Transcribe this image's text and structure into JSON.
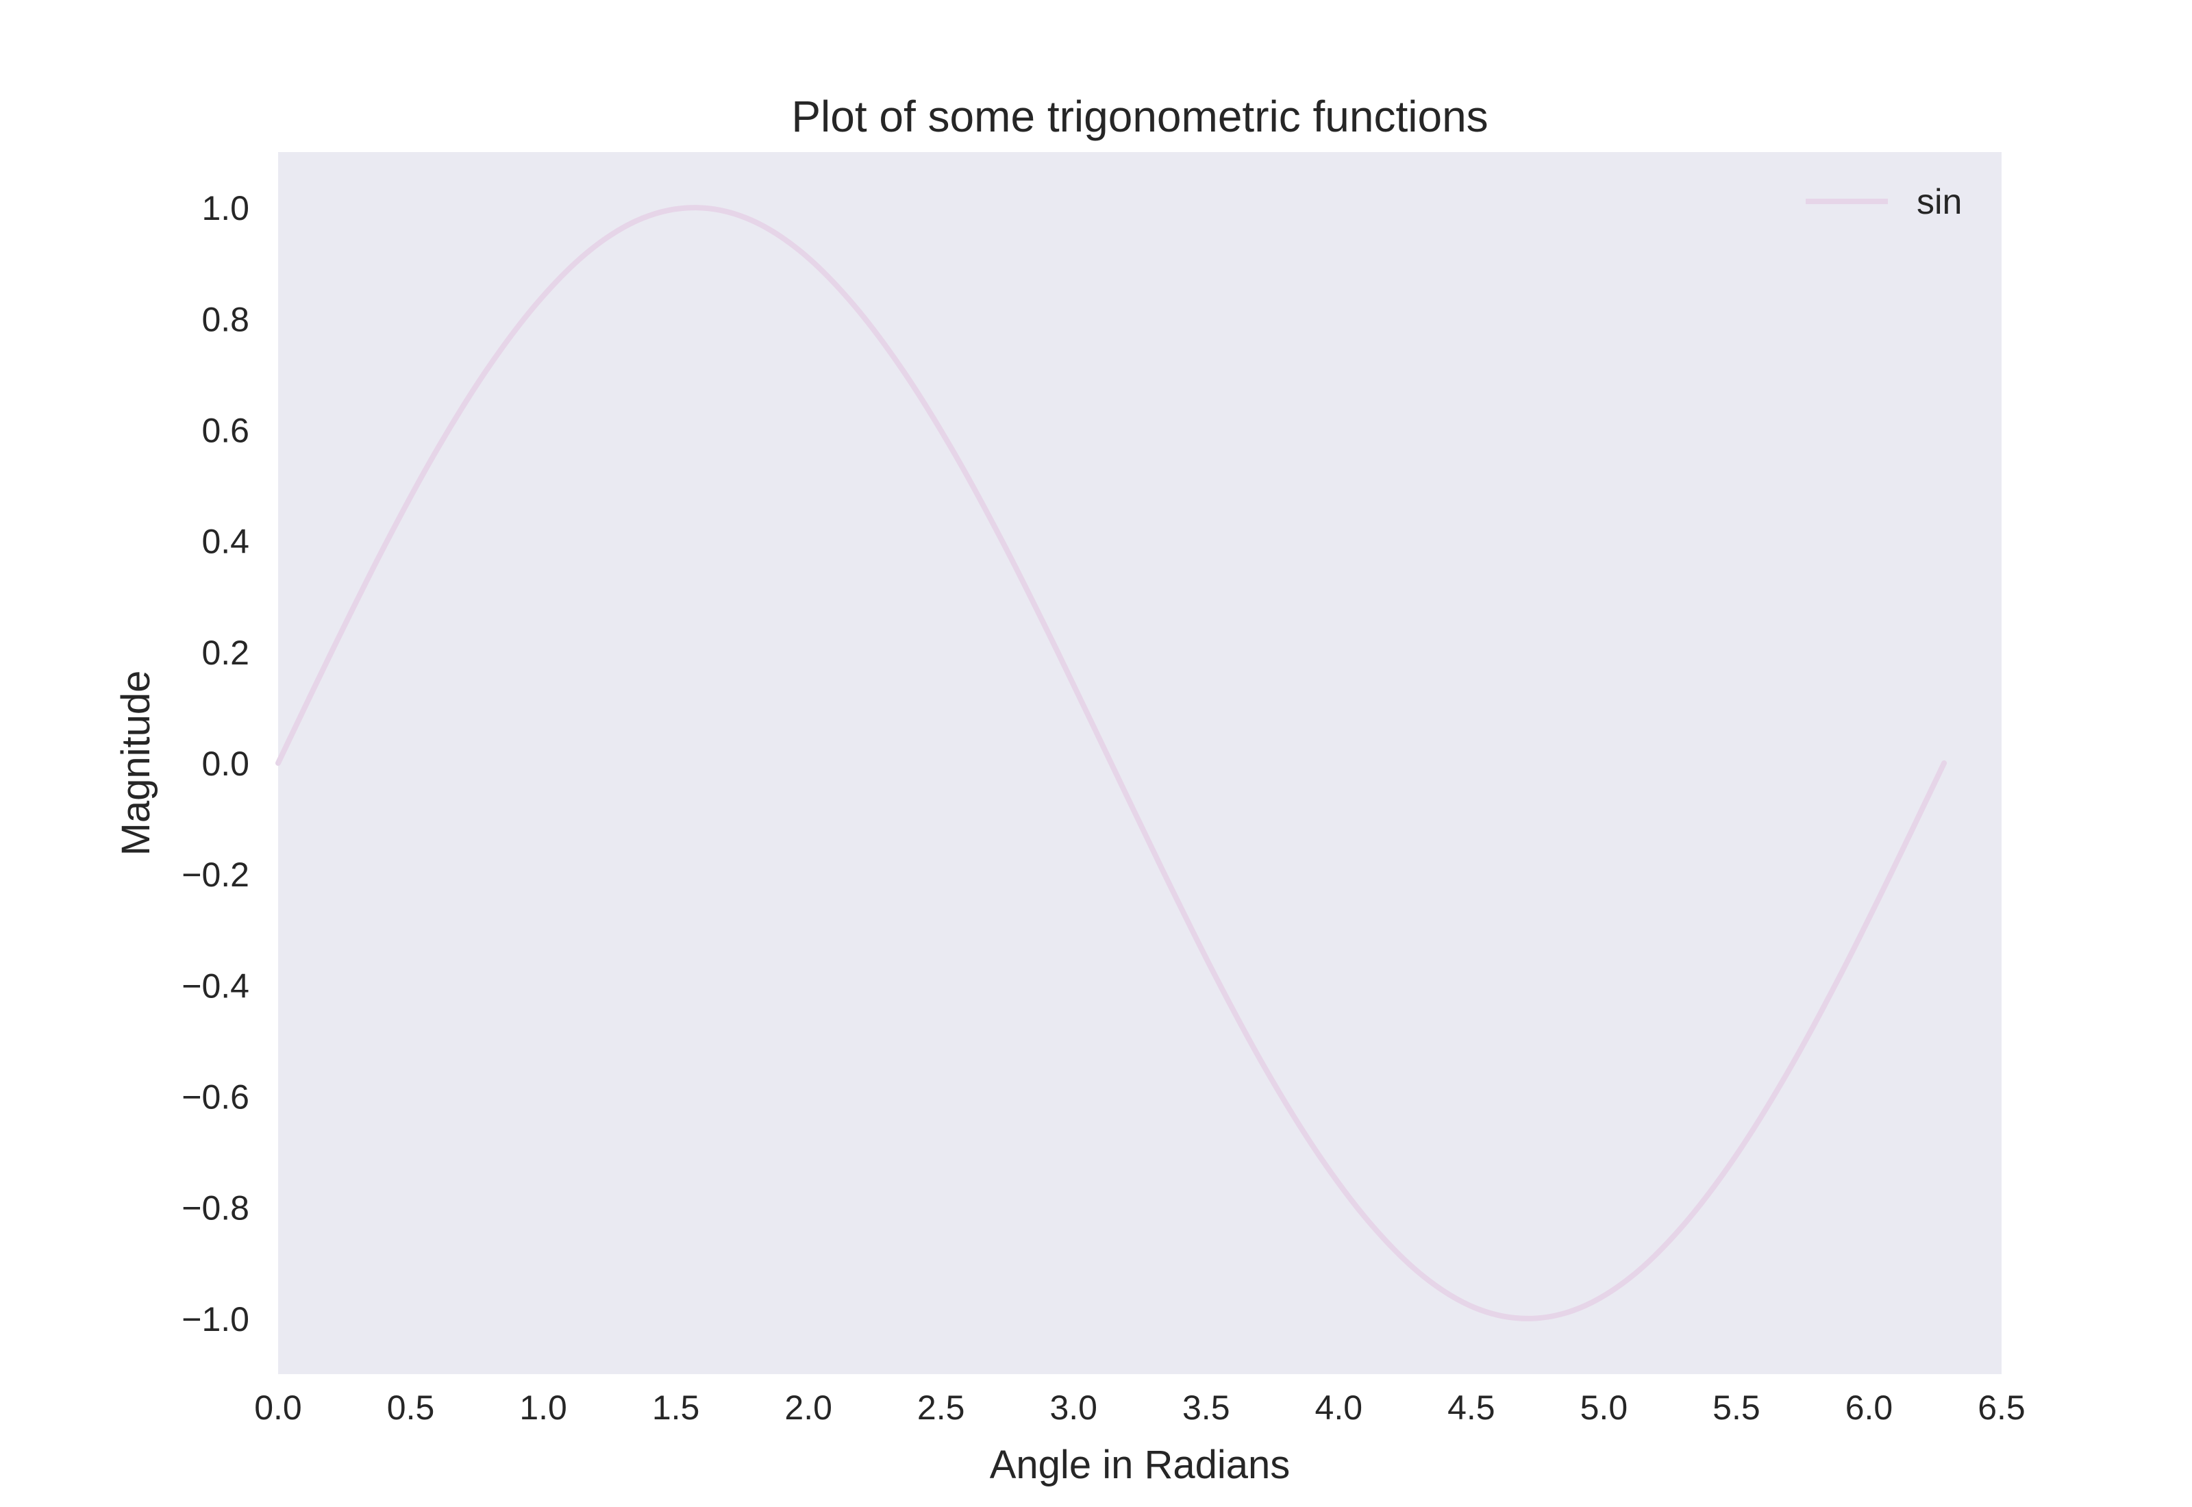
{
  "chart_data": {
    "type": "line",
    "title": "Plot of some trigonometric functions",
    "xlabel": "Angle in Radians",
    "ylabel": "Magnitude",
    "xlim": [
      0.0,
      6.5
    ],
    "ylim": [
      -1.1,
      1.1
    ],
    "x_ticks": [
      "0.0",
      "0.5",
      "1.0",
      "1.5",
      "2.0",
      "2.5",
      "3.0",
      "3.5",
      "4.0",
      "4.5",
      "5.0",
      "5.5",
      "6.0",
      "6.5"
    ],
    "y_ticks": [
      "1.0",
      "0.8",
      "0.6",
      "0.4",
      "0.2",
      "0.0",
      "−0.2",
      "−0.4",
      "−0.6",
      "−0.8",
      "−1.0"
    ],
    "grid": false,
    "legend_position": "top-right",
    "background_color": "#eaeaf2",
    "series": [
      {
        "name": "sin",
        "color": "#e6d5e8",
        "x": [
          0.0,
          0.1963,
          0.3927,
          0.589,
          0.7854,
          0.9817,
          1.1781,
          1.3744,
          1.5708,
          1.7671,
          1.9635,
          2.1598,
          2.3562,
          2.5525,
          2.7489,
          2.9452,
          3.1416,
          3.3379,
          3.5343,
          3.7306,
          3.927,
          4.1233,
          4.3197,
          4.516,
          4.7124,
          4.9087,
          5.1051,
          5.3014,
          5.4978,
          5.6941,
          5.8905,
          6.0868,
          6.2832
        ],
        "y": [
          0.0,
          0.195,
          0.383,
          0.556,
          0.707,
          0.831,
          0.924,
          0.981,
          1.0,
          0.981,
          0.924,
          0.831,
          0.707,
          0.556,
          0.383,
          0.195,
          0.0,
          -0.195,
          -0.383,
          -0.556,
          -0.707,
          -0.831,
          -0.924,
          -0.981,
          -1.0,
          -0.981,
          -0.924,
          -0.831,
          -0.707,
          -0.556,
          -0.383,
          -0.195,
          0.0
        ]
      }
    ]
  }
}
